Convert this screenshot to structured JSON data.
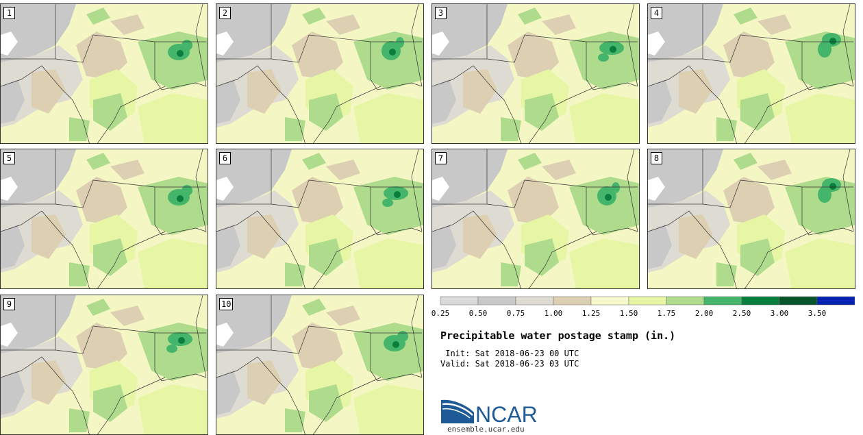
{
  "panels": [
    {
      "label": "1",
      "variant": 0
    },
    {
      "label": "2",
      "variant": 1
    },
    {
      "label": "3",
      "variant": 2
    },
    {
      "label": "4",
      "variant": 3
    },
    {
      "label": "5",
      "variant": 0
    },
    {
      "label": "6",
      "variant": 2
    },
    {
      "label": "7",
      "variant": 1
    },
    {
      "label": "8",
      "variant": 3
    },
    {
      "label": "9",
      "variant": 2
    },
    {
      "label": "10",
      "variant": 0
    }
  ],
  "colorbar": {
    "colors": [
      "#dadada",
      "#c8c8c8",
      "#dedcd2",
      "#ddcfb1",
      "#f6f9cc",
      "#e6f6a5",
      "#aedb8c",
      "#44b56b",
      "#0a7e3c",
      "#08542b",
      "#0522b0"
    ],
    "labels": [
      "0.25",
      "0.50",
      "0.75",
      "1.00",
      "1.25",
      "1.50",
      "1.75",
      "2.00",
      "2.50",
      "3.00",
      "3.50"
    ]
  },
  "title": "Precipitable water postage stamp (in.)",
  "init": " Init: Sat 2018-06-23 00 UTC",
  "valid": "Valid: Sat 2018-06-23 03 UTC",
  "logo": {
    "text": "NCAR",
    "url": "ensemble.ucar.edu",
    "color": "#1e5a96"
  }
}
